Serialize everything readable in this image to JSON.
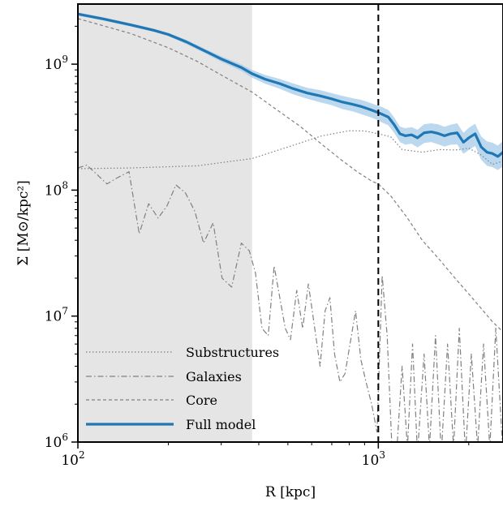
{
  "chart_data": {
    "type": "line",
    "xlabel": "R [kpc]",
    "ylabel": "Σ [M⊙/kpc²]",
    "xscale": "log",
    "yscale": "log",
    "xlim": [
      100,
      2600
    ],
    "ylim": [
      1000000,
      3000000000
    ],
    "x_ticks": [
      {
        "value": 100,
        "base": "10",
        "exp": "2"
      },
      {
        "value": 1000,
        "base": "10",
        "exp": "3"
      }
    ],
    "y_ticks": [
      {
        "value": 1000000,
        "base": "10",
        "exp": "6"
      },
      {
        "value": 10000000,
        "base": "10",
        "exp": "7"
      },
      {
        "value": 100000000,
        "base": "10",
        "exp": "8"
      },
      {
        "value": 1000000000,
        "base": "10",
        "exp": "9"
      }
    ],
    "shaded_region": {
      "x_from": 100,
      "x_to": 380,
      "color": "#e5e5e5"
    },
    "vertical_line": {
      "x": 1000,
      "style": "dashed",
      "color": "#000000"
    },
    "legend_position": "lower-left",
    "series": [
      {
        "name": "Substructures",
        "style": "dotted",
        "color": "#808080",
        "x": [
          100,
          150,
          250,
          380,
          500,
          650,
          800,
          900,
          1000,
          1100,
          1200,
          1400,
          1600,
          1800,
          2000,
          2200,
          2400,
          2600
        ],
        "y": [
          148000000,
          150000000,
          156000000,
          178000000,
          220000000,
          270000000,
          296000000,
          295000000,
          280000000,
          265000000,
          210000000,
          200000000,
          210000000,
          208000000,
          215000000,
          190000000,
          160000000,
          170000000
        ]
      },
      {
        "name": "Galaxies",
        "style": "dashdot",
        "color": "#808080",
        "x": [
          100,
          107,
          115,
          125,
          135,
          148,
          160,
          172,
          185,
          198,
          212,
          228,
          245,
          262,
          282,
          302,
          325,
          350,
          372,
          390,
          410,
          430,
          450,
          470,
          490,
          510,
          535,
          560,
          585,
          610,
          640,
          665,
          690,
          715,
          745,
          775,
          805,
          840,
          875,
          910,
          950,
          990,
          1030,
          1070,
          1110,
          1150,
          1200,
          1250,
          1300,
          1350,
          1420,
          1480,
          1550,
          1620,
          1700,
          1780,
          1860,
          1950,
          2040,
          2140,
          2240,
          2350,
          2460,
          2600
        ],
        "y": [
          150000000,
          158000000,
          135000000,
          112000000,
          125000000,
          140000000,
          45000000,
          78000000,
          60000000,
          75000000,
          110000000,
          95000000,
          68000000,
          38000000,
          55000000,
          20000000,
          17000000,
          38000000,
          33000000,
          22000000,
          8000000,
          7000000,
          25000000,
          14000000,
          8000000,
          6500000,
          16000000,
          8000000,
          18000000,
          9000000,
          4000000,
          11000000,
          14000000,
          5000000,
          3000000,
          3500000,
          6000000,
          11000000,
          4500000,
          3000000,
          2000000,
          1200000,
          21000000,
          7000000,
          900000,
          800000,
          4000000,
          900000,
          6000000,
          800000,
          5000000,
          900000,
          7000000,
          800000,
          6000000,
          900000,
          8000000,
          800000,
          5000000,
          900000,
          6000000,
          900000,
          8000000,
          800000
        ]
      },
      {
        "name": "Core",
        "style": "dashed",
        "color": "#808080",
        "x": [
          100,
          150,
          200,
          250,
          300,
          380,
          450,
          550,
          650,
          750,
          850,
          950,
          1000,
          1100,
          1250,
          1400,
          1600,
          1800,
          2000,
          2200,
          2400,
          2600
        ],
        "y": [
          2300000000,
          1750000000,
          1350000000,
          1050000000,
          820000000,
          600000000,
          450000000,
          320000000,
          230000000,
          175000000,
          140000000,
          118000000,
          112000000,
          90000000,
          60000000,
          40000000,
          28000000,
          20000000,
          15000000,
          11500000,
          9000000,
          7500000
        ]
      },
      {
        "name": "Full model",
        "style": "solid",
        "color": "#1f77b4",
        "band_color": "#a6cbe8",
        "x": [
          100,
          120,
          150,
          180,
          200,
          230,
          260,
          300,
          350,
          380,
          420,
          470,
          520,
          580,
          640,
          700,
          760,
          820,
          880,
          930,
          980,
          1030,
          1080,
          1130,
          1180,
          1230,
          1290,
          1350,
          1420,
          1500,
          1580,
          1660,
          1740,
          1830,
          1920,
          2000,
          2100,
          2200,
          2300,
          2400,
          2500,
          2600
        ],
        "y": [
          2500000000,
          2300000000,
          2050000000,
          1850000000,
          1720000000,
          1500000000,
          1300000000,
          1100000000,
          940000000,
          840000000,
          760000000,
          700000000,
          640000000,
          590000000,
          560000000,
          530000000,
          500000000,
          480000000,
          460000000,
          440000000,
          420000000,
          400000000,
          380000000,
          330000000,
          280000000,
          270000000,
          275000000,
          260000000,
          285000000,
          290000000,
          282000000,
          270000000,
          280000000,
          285000000,
          240000000,
          260000000,
          280000000,
          220000000,
          200000000,
          195000000,
          185000000,
          200000000
        ],
        "band_halfwidth_frac": [
          0.03,
          0.03,
          0.03,
          0.03,
          0.03,
          0.04,
          0.04,
          0.05,
          0.06,
          0.07,
          0.08,
          0.09,
          0.1,
          0.1,
          0.11,
          0.11,
          0.12,
          0.12,
          0.13,
          0.13,
          0.13,
          0.14,
          0.14,
          0.14,
          0.14,
          0.15,
          0.15,
          0.16,
          0.17,
          0.17,
          0.18,
          0.18,
          0.18,
          0.19,
          0.19,
          0.2,
          0.2,
          0.21,
          0.22,
          0.22,
          0.22,
          0.23
        ]
      }
    ]
  }
}
